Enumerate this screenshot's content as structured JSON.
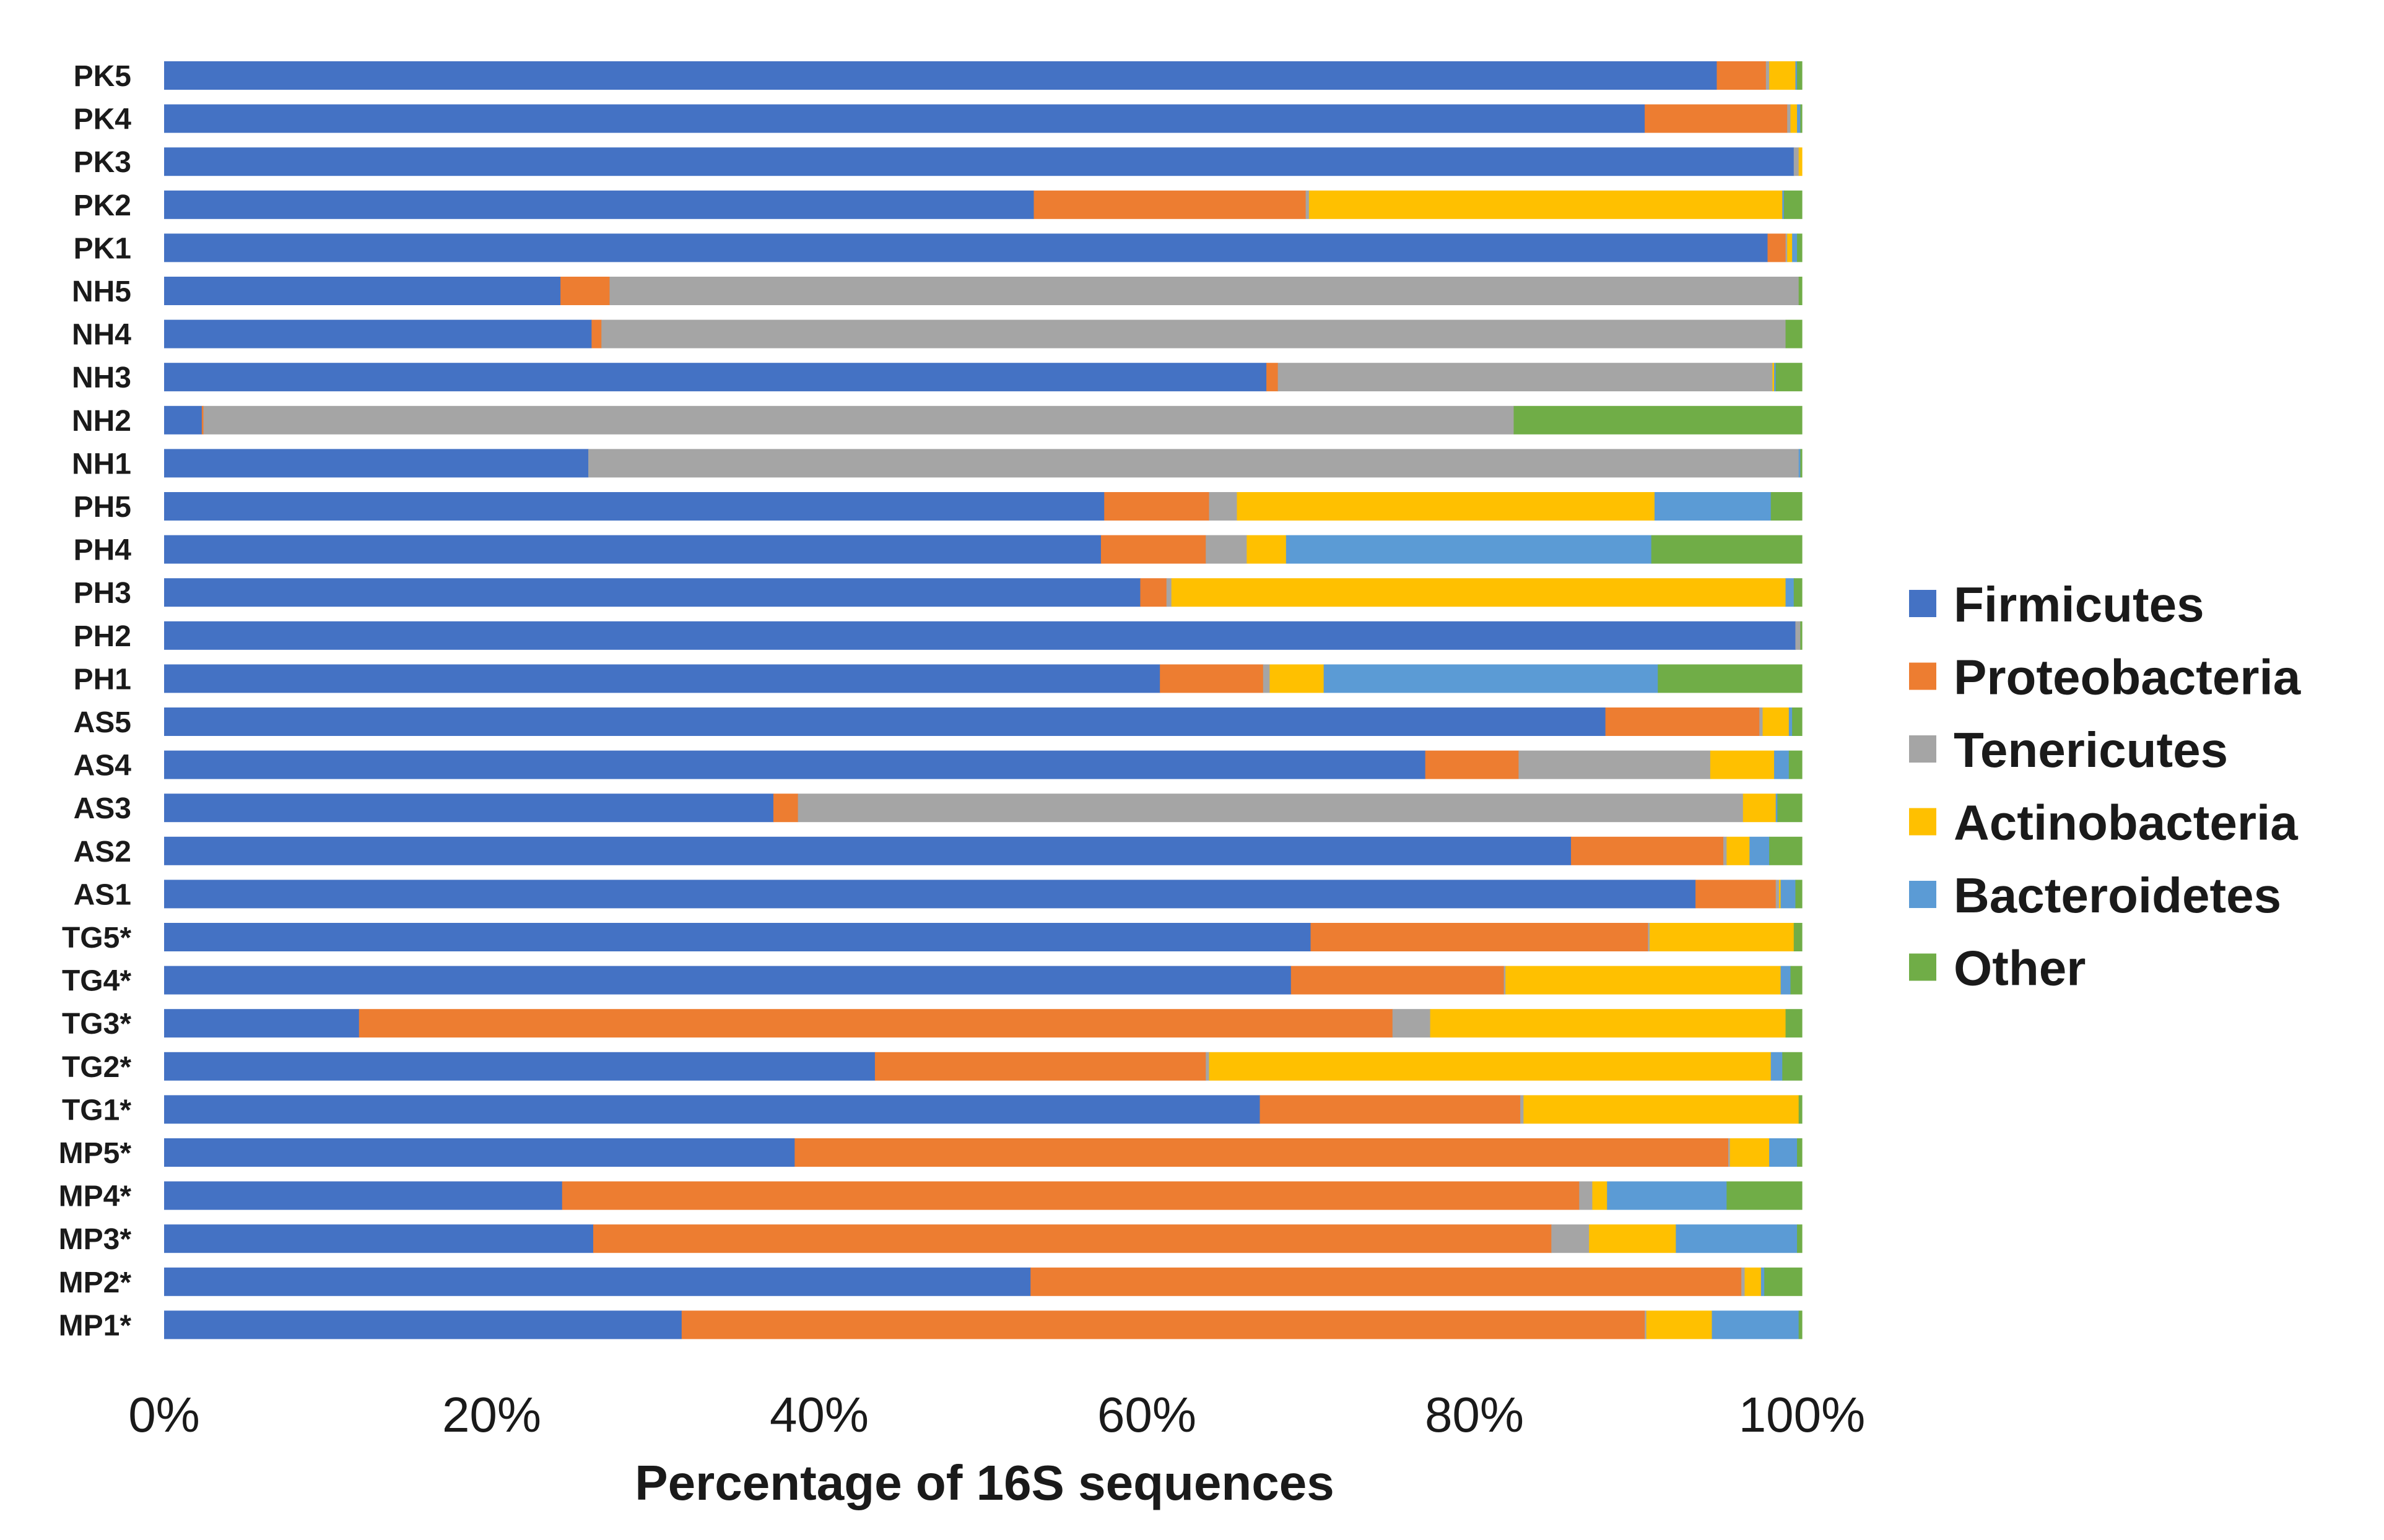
{
  "chart_data": {
    "type": "bar",
    "orientation": "horizontal",
    "stacked": true,
    "normalized": true,
    "xlabel": "Percentage of 16S sequences",
    "ylabel": "",
    "xlim": [
      0,
      100
    ],
    "x_ticks": [
      "0%",
      "20%",
      "40%",
      "60%",
      "80%",
      "100%"
    ],
    "grid": false,
    "legend_position": "right",
    "categories": [
      "PK5",
      "PK4",
      "PK3",
      "PK2",
      "PK1",
      "NH5",
      "NH4",
      "NH3",
      "NH2",
      "NH1",
      "PH5",
      "PH4",
      "PH3",
      "PH2",
      "PH1",
      "AS5",
      "AS4",
      "AS3",
      "AS2",
      "AS1",
      "TG5*",
      "TG4*",
      "TG3*",
      "TG2*",
      "TG1*",
      "MP5*",
      "MP4*",
      "MP3*",
      "MP2*",
      "MP1*"
    ],
    "series": [
      {
        "name": "Firmicutes",
        "color": "#4472C4",
        "values": [
          94.8,
          90.4,
          99.5,
          53.1,
          97.9,
          24.2,
          26.1,
          67.3,
          2.3,
          25.9,
          57.4,
          57.2,
          59.6,
          99.6,
          60.8,
          88.0,
          77.0,
          37.2,
          85.9,
          93.5,
          70.0,
          68.8,
          11.9,
          43.4,
          66.9,
          38.5,
          24.3,
          26.2,
          52.9,
          31.6
        ]
      },
      {
        "name": "Proteobacteria",
        "color": "#ED7D31",
        "values": [
          3.0,
          8.7,
          0.0,
          16.6,
          1.1,
          3.0,
          0.6,
          0.7,
          0.1,
          0.0,
          6.4,
          6.4,
          1.6,
          0.0,
          6.3,
          9.4,
          5.7,
          1.5,
          9.3,
          4.9,
          20.6,
          13.0,
          63.1,
          20.2,
          15.9,
          57.0,
          62.1,
          58.5,
          43.4,
          58.8
        ]
      },
      {
        "name": "Tenericutes",
        "color": "#A5A5A5",
        "values": [
          0.2,
          0.2,
          0.3,
          0.2,
          0.1,
          72.6,
          72.3,
          30.2,
          80.0,
          73.9,
          1.7,
          2.5,
          0.3,
          0.3,
          0.4,
          0.2,
          11.7,
          57.7,
          0.2,
          0.2,
          0.1,
          0.1,
          2.3,
          0.2,
          0.2,
          0.1,
          0.8,
          2.3,
          0.2,
          0.1
        ]
      },
      {
        "name": "Actinobacteria",
        "color": "#FFC000",
        "values": [
          1.6,
          0.4,
          0.2,
          28.9,
          0.3,
          0.0,
          0.0,
          0.1,
          0.0,
          0.0,
          25.5,
          2.4,
          37.5,
          0.0,
          3.3,
          1.6,
          3.9,
          2.0,
          1.4,
          0.1,
          8.8,
          16.8,
          21.7,
          34.3,
          16.8,
          2.4,
          0.9,
          5.3,
          1.0,
          4.0
        ]
      },
      {
        "name": "Bacteroidetes",
        "color": "#5B9BD5",
        "values": [
          0.1,
          0.2,
          0.0,
          0.1,
          0.3,
          0.0,
          0.0,
          0.1,
          0.0,
          0.1,
          7.1,
          22.3,
          0.5,
          0.0,
          20.4,
          0.2,
          0.9,
          0.1,
          1.2,
          0.9,
          0.0,
          0.6,
          0.0,
          0.7,
          0.0,
          1.7,
          7.3,
          7.4,
          0.2,
          5.3
        ]
      },
      {
        "name": "Other",
        "color": "#70AD47",
        "values": [
          0.3,
          0.1,
          0.0,
          1.1,
          0.3,
          0.2,
          1.0,
          1.6,
          17.6,
          0.1,
          1.9,
          9.2,
          0.5,
          0.1,
          8.8,
          0.6,
          0.8,
          1.5,
          2.0,
          0.4,
          0.5,
          0.7,
          1.0,
          1.2,
          0.2,
          0.3,
          4.6,
          0.3,
          2.3,
          0.2
        ]
      }
    ]
  }
}
